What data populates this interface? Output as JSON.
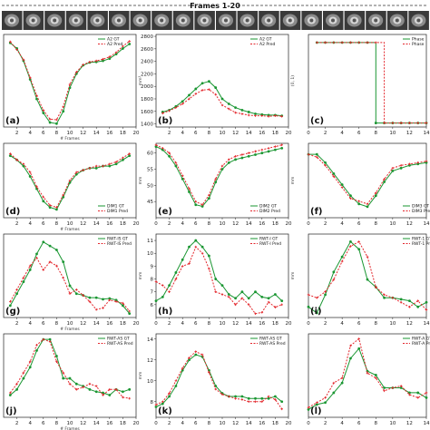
{
  "header": {
    "title": "Frames 1-20"
  },
  "colors": {
    "gt": "#1a9632",
    "pred": "#e3262b"
  },
  "chart_data": [
    {
      "type": "line",
      "label": "(a)",
      "ylabel": "",
      "xlabel": "# Frames",
      "xlim": [
        0,
        20
      ],
      "ylim": [
        1200,
        2850
      ],
      "xticks": [
        2,
        4,
        6,
        8,
        10,
        12,
        14,
        16,
        18,
        20
      ],
      "yticks": [],
      "x": [
        1,
        2,
        3,
        4,
        5,
        6,
        7,
        8,
        9,
        10,
        11,
        12,
        13,
        14,
        15,
        16,
        17,
        18,
        19
      ],
      "series": [
        {
          "name": "A2 GT",
          "values": [
            2700,
            2600,
            2380,
            2050,
            1700,
            1450,
            1280,
            1260,
            1480,
            1900,
            2150,
            2300,
            2350,
            2360,
            2380,
            2420,
            2500,
            2600,
            2680
          ]
        },
        {
          "name": "A2 Pred",
          "values": [
            2720,
            2580,
            2400,
            2080,
            1760,
            1500,
            1340,
            1330,
            1560,
            1960,
            2180,
            2310,
            2360,
            2380,
            2410,
            2450,
            2530,
            2640,
            2730
          ]
        }
      ]
    },
    {
      "type": "line",
      "label": "(b)",
      "ylabel": "mm²",
      "xlabel": "",
      "xlim": [
        0,
        20
      ],
      "ylim": [
        1350,
        2830
      ],
      "xticks": [
        2,
        4,
        6,
        8,
        10,
        12,
        14,
        16,
        18,
        20
      ],
      "yticks": [
        1400,
        1600,
        1800,
        2000,
        2200,
        2400,
        2600,
        2800
      ],
      "x": [
        1,
        2,
        3,
        4,
        5,
        6,
        7,
        8,
        9,
        10,
        11,
        12,
        13,
        14,
        15,
        16,
        17,
        18,
        19
      ],
      "series": [
        {
          "name": "A2 GT",
          "values": [
            1590,
            1620,
            1680,
            1760,
            1860,
            1960,
            2050,
            2080,
            1980,
            1800,
            1720,
            1660,
            1620,
            1590,
            1560,
            1550,
            1540,
            1540,
            1530
          ]
        },
        {
          "name": "A2 Pred",
          "values": [
            1570,
            1610,
            1660,
            1720,
            1800,
            1880,
            1940,
            1950,
            1870,
            1700,
            1640,
            1580,
            1560,
            1540,
            1530,
            1530,
            1520,
            1530,
            1520
          ]
        }
      ]
    },
    {
      "type": "line",
      "label": "(c)",
      "ylabel": "(0, 1)",
      "xlabel": "",
      "xlim": [
        0,
        14
      ],
      "ylim": [
        -0.05,
        1.1
      ],
      "xticks": [
        0,
        2,
        4,
        6,
        8,
        10,
        12,
        14
      ],
      "yticks": [],
      "x": [
        1,
        2,
        3,
        4,
        5,
        6,
        7,
        8,
        9,
        10,
        11,
        12,
        13,
        14
      ],
      "series": [
        {
          "name": "Phase",
          "values": [
            1,
            1,
            1,
            1,
            1,
            1,
            1,
            0,
            0,
            0,
            0,
            0,
            0,
            0
          ]
        },
        {
          "name": "Phase",
          "values": [
            1,
            1,
            1,
            1,
            1,
            1,
            1,
            1,
            0,
            0,
            0,
            0,
            0,
            0
          ]
        }
      ]
    },
    {
      "type": "line",
      "label": "(d)",
      "ylabel": "",
      "xlabel": "# Frames",
      "xlim": [
        0,
        20
      ],
      "ylim": [
        20,
        56
      ],
      "xticks": [
        2,
        4,
        6,
        8,
        10,
        12,
        14,
        16,
        18,
        20
      ],
      "yticks": [],
      "x": [
        1,
        2,
        3,
        4,
        5,
        6,
        7,
        8,
        9,
        10,
        11,
        12,
        13,
        14,
        15,
        16,
        17,
        18,
        19
      ],
      "series": [
        {
          "name": "DIM1 GT",
          "values": [
            50,
            48,
            45,
            40,
            34,
            28,
            25,
            24,
            30,
            37,
            41,
            43,
            44,
            44,
            45,
            45,
            46,
            48,
            50
          ]
        },
        {
          "name": "DIM1 Pred",
          "values": [
            51,
            48,
            46,
            42,
            35,
            30,
            26,
            25,
            31,
            38,
            42,
            43,
            44,
            45,
            45,
            46,
            47,
            49,
            51
          ]
        }
      ]
    },
    {
      "type": "line",
      "label": "(e)",
      "ylabel": "mm",
      "xlabel": "",
      "xlim": [
        0,
        20
      ],
      "ylim": [
        40,
        63
      ],
      "xticks": [
        0,
        2,
        4,
        6,
        8,
        10,
        12,
        14,
        16,
        18,
        20
      ],
      "yticks": [
        45,
        50,
        55,
        60
      ],
      "x": [
        0,
        1,
        2,
        3,
        4,
        5,
        6,
        7,
        8,
        9,
        10,
        11,
        12,
        13,
        14,
        15,
        16,
        17,
        18,
        19
      ],
      "series": [
        {
          "name": "DIM2 GT",
          "values": [
            62,
            61,
            59,
            56,
            52,
            48,
            44,
            43.5,
            46,
            51,
            55,
            57,
            58,
            58.5,
            59,
            59.5,
            60,
            60.5,
            61,
            61.5
          ]
        },
        {
          "name": "DIM2 Pred",
          "values": [
            62.5,
            61.5,
            60,
            57,
            53,
            49,
            45,
            44,
            47,
            52,
            56,
            58,
            59,
            59.5,
            60,
            60.5,
            61,
            61.5,
            62,
            62.5
          ]
        }
      ]
    },
    {
      "type": "line",
      "label": "(f)",
      "ylabel": "mm",
      "xlabel": "",
      "xlim": [
        0,
        14
      ],
      "ylim": [
        35,
        62
      ],
      "xticks": [
        0,
        2,
        4,
        6,
        8,
        10,
        12,
        14
      ],
      "yticks": [],
      "x": [
        0,
        1,
        2,
        3,
        4,
        5,
        6,
        7,
        8,
        9,
        10,
        11,
        12,
        13,
        14
      ],
      "series": [
        {
          "name": "DIM3 GT",
          "values": [
            58,
            58,
            55,
            51,
            47,
            43,
            40,
            39,
            43,
            48,
            52,
            53,
            54,
            54.5,
            55
          ]
        },
        {
          "name": "DIM3 Pred",
          "values": [
            58,
            57,
            54,
            50,
            46,
            42,
            41,
            40,
            44,
            49,
            53,
            54,
            54.5,
            55,
            55.5
          ]
        }
      ]
    },
    {
      "type": "line",
      "label": "(g)",
      "ylabel": "",
      "xlabel": "# Frames",
      "xlim": [
        0,
        20
      ],
      "ylim": [
        0,
        10.5
      ],
      "xticks": [
        2,
        4,
        6,
        8,
        10,
        12,
        14,
        16,
        18,
        20
      ],
      "yticks": [],
      "x": [
        1,
        2,
        3,
        4,
        5,
        6,
        7,
        8,
        9,
        10,
        11,
        12,
        13,
        14,
        15,
        16,
        17,
        18,
        19
      ],
      "series": [
        {
          "name": "RWT-IS GT",
          "values": [
            1.5,
            3,
            4.5,
            6,
            8,
            9.5,
            9,
            8.5,
            7,
            4,
            3,
            2.8,
            2.5,
            2.5,
            2.3,
            2.4,
            2.2,
            1.5,
            0.5
          ]
        },
        {
          "name": "RWT-IS Pred",
          "values": [
            2,
            3.5,
            5,
            6.5,
            7.5,
            6,
            7,
            6.5,
            5,
            3,
            3.5,
            2.8,
            2,
            1,
            1.2,
            2.2,
            2,
            1.8,
            0.8
          ]
        }
      ]
    },
    {
      "type": "line",
      "label": "(h)",
      "ylabel": "mm",
      "xlabel": "",
      "xlim": [
        0,
        20
      ],
      "ylim": [
        5,
        11.5
      ],
      "xticks": [
        0,
        2,
        4,
        6,
        8,
        10,
        12,
        14,
        16,
        18,
        20
      ],
      "yticks": [
        6,
        7,
        8,
        9,
        10,
        11
      ],
      "x": [
        0,
        1,
        2,
        3,
        4,
        5,
        6,
        7,
        8,
        9,
        10,
        11,
        12,
        13,
        14,
        15,
        16,
        17,
        18,
        19
      ],
      "series": [
        {
          "name": "RWT-I GT",
          "values": [
            6.3,
            6.6,
            7.5,
            8.5,
            9.5,
            10.5,
            11,
            10.5,
            9.8,
            8,
            7.5,
            6.8,
            6.5,
            7,
            6.5,
            7,
            6.6,
            6.5,
            6.8,
            6.3
          ]
        },
        {
          "name": "RWT-I Pred",
          "values": [
            7.8,
            7.5,
            7,
            8,
            9,
            9.2,
            10.5,
            10,
            8.8,
            7,
            6.8,
            6.6,
            6,
            6.5,
            6,
            5.3,
            5.4,
            6.2,
            5.8,
            6
          ]
        }
      ]
    },
    {
      "type": "line",
      "label": "(i)",
      "ylabel": "mm",
      "xlabel": "",
      "xlim": [
        0,
        14
      ],
      "ylim": [
        5.5,
        11
      ],
      "xticks": [
        0,
        2,
        4,
        6,
        8,
        10,
        12,
        14
      ],
      "yticks": [],
      "x": [
        0,
        1,
        2,
        3,
        4,
        5,
        6,
        7,
        8,
        9,
        10,
        11,
        12,
        13,
        14
      ],
      "series": [
        {
          "name": "RWT-1 GT",
          "values": [
            6.2,
            5.8,
            7,
            8.5,
            9.5,
            10.5,
            10,
            8,
            7.5,
            6.8,
            6.8,
            6.7,
            6.6,
            6.2,
            6.5
          ]
        },
        {
          "name": "RWT-1 Pred",
          "values": [
            7,
            6.8,
            7.2,
            8,
            9.2,
            10.2,
            10.5,
            9.5,
            7.5,
            7,
            6.8,
            6.5,
            6.2,
            6.6,
            6
          ]
        }
      ]
    },
    {
      "type": "line",
      "label": "(j)",
      "ylabel": "",
      "xlabel": "# Frames",
      "xlim": [
        0,
        20
      ],
      "ylim": [
        6,
        13.5
      ],
      "xticks": [
        2,
        4,
        6,
        8,
        10,
        12,
        14,
        16,
        18,
        20
      ],
      "yticks": [],
      "x": [
        1,
        2,
        3,
        4,
        5,
        6,
        7,
        8,
        9,
        10,
        11,
        12,
        13,
        14,
        15,
        16,
        17,
        18,
        19
      ],
      "series": [
        {
          "name": "RWT-AS GT",
          "values": [
            8,
            8.5,
            9.5,
            10.5,
            12,
            13,
            13,
            11.5,
            9.5,
            9.5,
            9,
            8.8,
            8.5,
            8.3,
            8.2,
            8,
            8.5,
            8.3,
            8.5
          ]
        },
        {
          "name": "RWT-AS Pred",
          "values": [
            8.2,
            9,
            10,
            11,
            12.5,
            13,
            12.8,
            11,
            10,
            9,
            8.5,
            8.7,
            9,
            8.8,
            8,
            8.5,
            8.5,
            7.8,
            7.7
          ]
        }
      ]
    },
    {
      "type": "line",
      "label": "(k)",
      "ylabel": "mm",
      "xlabel": "",
      "xlim": [
        0,
        20
      ],
      "ylim": [
        6.5,
        14.5
      ],
      "xticks": [
        0,
        2,
        4,
        6,
        8,
        10,
        12,
        14,
        16,
        18,
        20
      ],
      "yticks": [
        8,
        10,
        12,
        14
      ],
      "x": [
        0,
        1,
        2,
        3,
        4,
        5,
        6,
        7,
        8,
        9,
        10,
        11,
        12,
        13,
        14,
        15,
        16,
        17,
        18,
        19
      ],
      "series": [
        {
          "name": "RWT-AS GT",
          "values": [
            7.5,
            7.8,
            8.5,
            9.5,
            11,
            12,
            12.5,
            12.3,
            11,
            9.5,
            8.8,
            8.5,
            8.5,
            8.5,
            8.3,
            8.3,
            8.3,
            8.3,
            8.5,
            8
          ]
        },
        {
          "name": "RWT-AS Pred",
          "values": [
            7.7,
            8,
            8.8,
            10,
            11.2,
            12.2,
            12.8,
            12.5,
            10.8,
            9.2,
            8.7,
            8.5,
            8.3,
            8.2,
            8,
            8,
            8,
            8.5,
            8.2,
            7.3
          ]
        }
      ]
    },
    {
      "type": "line",
      "label": "(l)",
      "ylabel": "",
      "xlabel": "",
      "xlim": [
        0,
        14
      ],
      "ylim": [
        5.5,
        14
      ],
      "xticks": [
        0,
        2,
        4,
        6,
        8,
        10,
        12,
        14
      ],
      "yticks": [],
      "x": [
        0,
        1,
        2,
        3,
        4,
        5,
        6,
        7,
        8,
        9,
        10,
        11,
        12,
        13,
        14
      ],
      "series": [
        {
          "name": "RWT-A GT",
          "values": [
            6.3,
            6.8,
            7,
            8,
            9,
            11.5,
            12.5,
            10.2,
            9.8,
            8.5,
            8.5,
            8.5,
            8,
            8,
            7.5
          ]
        },
        {
          "name": "RWT-A Pred",
          "values": [
            6.5,
            7,
            7.5,
            9,
            9.5,
            12.8,
            13.5,
            10,
            9.5,
            8.2,
            8.5,
            8.7,
            7.8,
            7.5,
            8
          ]
        }
      ]
    }
  ]
}
